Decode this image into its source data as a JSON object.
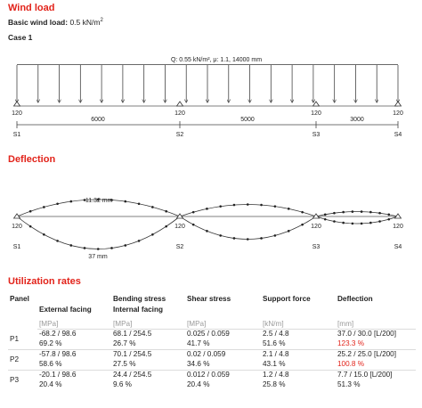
{
  "wind": {
    "title": "Wind load",
    "basic_label": "Basic wind load:",
    "basic_value": "0.5 kN/m",
    "basic_sup": "2",
    "case": "Case 1",
    "load_label": "Q: 0.55 kN/m², μ: 1.1, 14000 mm",
    "supports": [
      {
        "name": "S1",
        "value": "120"
      },
      {
        "name": "S2",
        "value": "120"
      },
      {
        "name": "S3",
        "value": "120"
      },
      {
        "name": "S4",
        "value": "120"
      }
    ],
    "spans": [
      "6000",
      "5000",
      "3000"
    ]
  },
  "deflection": {
    "title": "Deflection",
    "upper_label": "-11.32 mm",
    "lower_label": "37 mm",
    "supports": [
      {
        "name": "S1",
        "value": "120"
      },
      {
        "name": "S2",
        "value": "120"
      },
      {
        "name": "S3",
        "value": "120"
      },
      {
        "name": "S4",
        "value": "120"
      }
    ]
  },
  "utilization": {
    "title": "Utilization rates",
    "headers": {
      "panel": "Panel",
      "bending": "Bending stress",
      "shear": "Shear stress",
      "support": "Support force",
      "deflection": "Deflection",
      "external": "External facing",
      "internal": "Internal facing"
    },
    "units": {
      "external": "[MPa]",
      "internal": "[MPa]",
      "shear": "[MPa]",
      "support": "[kN/m]",
      "deflection": "[mm]"
    },
    "rows": [
      {
        "panel": "P1",
        "external": "-68.2 / 98.6",
        "external_pct": "69.2 %",
        "internal": "68.1 / 254.5",
        "internal_pct": "26.7 %",
        "shear": "0.025 / 0.059",
        "shear_pct": "41.7 %",
        "support": "2.5 / 4.8",
        "support_pct": "51.6 %",
        "deflection": "37.0 / 30.0 [L/200]",
        "deflection_pct": "123.3 %"
      },
      {
        "panel": "P2",
        "external": "-57.8 / 98.6",
        "external_pct": "58.6 %",
        "internal": "70.1 / 254.5",
        "internal_pct": "27.5 %",
        "shear": "0.02 / 0.059",
        "shear_pct": "34.6 %",
        "support": "2.1 / 4.8",
        "support_pct": "43.1 %",
        "deflection": "25.2 / 25.0 [L/200]",
        "deflection_pct": "100.8 %"
      },
      {
        "panel": "P3",
        "external": "-20.1 / 98.6",
        "external_pct": "20.4 %",
        "internal": "24.4 / 254.5",
        "internal_pct": "9.6 %",
        "shear": "0.012 / 0.059",
        "shear_pct": "20.4 %",
        "support": "1.2 / 4.8",
        "support_pct": "25.8 %",
        "deflection": "7.7 / 15.0 [L/200]",
        "deflection_pct": "51.3 %"
      }
    ],
    "exceeded_color": "#e2231a"
  }
}
